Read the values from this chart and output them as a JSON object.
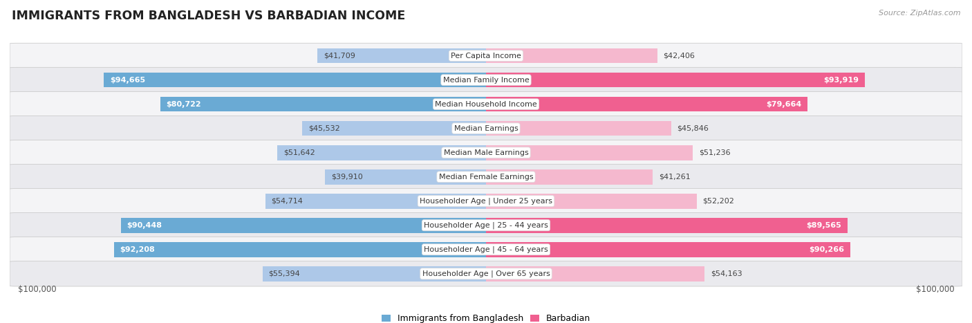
{
  "title": "IMMIGRANTS FROM BANGLADESH VS BARBADIAN INCOME",
  "source": "Source: ZipAtlas.com",
  "categories": [
    "Per Capita Income",
    "Median Family Income",
    "Median Household Income",
    "Median Earnings",
    "Median Male Earnings",
    "Median Female Earnings",
    "Householder Age | Under 25 years",
    "Householder Age | 25 - 44 years",
    "Householder Age | 45 - 64 years",
    "Householder Age | Over 65 years"
  ],
  "bangladesh_values": [
    41709,
    94665,
    80722,
    45532,
    51642,
    39910,
    54714,
    90448,
    92208,
    55394
  ],
  "barbadian_values": [
    42406,
    93919,
    79664,
    45846,
    51236,
    41261,
    52202,
    89565,
    90266,
    54163
  ],
  "bangladesh_labels": [
    "$41,709",
    "$94,665",
    "$80,722",
    "$45,532",
    "$51,642",
    "$39,910",
    "$54,714",
    "$90,448",
    "$92,208",
    "$55,394"
  ],
  "barbadian_labels": [
    "$42,406",
    "$93,919",
    "$79,664",
    "$45,846",
    "$51,236",
    "$41,261",
    "$52,202",
    "$89,565",
    "$90,266",
    "$54,163"
  ],
  "bangladesh_color_light": "#adc8e8",
  "bangladesh_color_dark": "#6aaad4",
  "barbadian_color_light": "#f5b8ce",
  "barbadian_color_dark": "#f06090",
  "dark_threshold": 0.6,
  "max_value": 100000,
  "bar_height": 0.62,
  "legend_bangladesh": "Immigrants from Bangladesh",
  "legend_barbadian": "Barbadian",
  "xlabel_left": "$100,000",
  "xlabel_right": "$100,000",
  "row_colors": [
    "#f4f4f6",
    "#eaeaee"
  ]
}
